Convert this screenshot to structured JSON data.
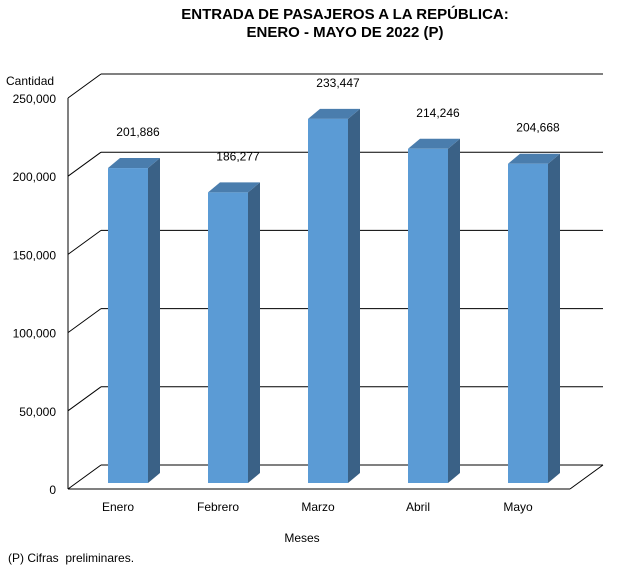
{
  "chart_data": {
    "type": "bar",
    "title": [
      "ENTRADA DE PASAJEROS A LA REPÚBLICA:",
      "ENERO - MAYO DE 2022 (P)"
    ],
    "xlabel": "Meses",
    "ylabel": "Cantidad",
    "categories": [
      "Enero",
      "Febrero",
      "Marzo",
      "Abril",
      "Mayo"
    ],
    "values": [
      201886,
      186277,
      233447,
      214246,
      204668
    ],
    "value_labels": [
      "201,886",
      "186,277",
      "233,447",
      "214,246",
      "204,668"
    ],
    "ylim": [
      0,
      250000
    ],
    "yticks": [
      0,
      50000,
      100000,
      150000,
      200000,
      250000
    ],
    "ytick_labels": [
      "0",
      "50,000",
      "100,000",
      "150,000",
      "200,000",
      "250,000"
    ],
    "grid": true,
    "legend": "none",
    "footnote": "(P) Cifras  preliminares.",
    "colors": {
      "front": "#5B9BD5",
      "side": "#3A6186",
      "top": "#4A7DAD"
    }
  }
}
